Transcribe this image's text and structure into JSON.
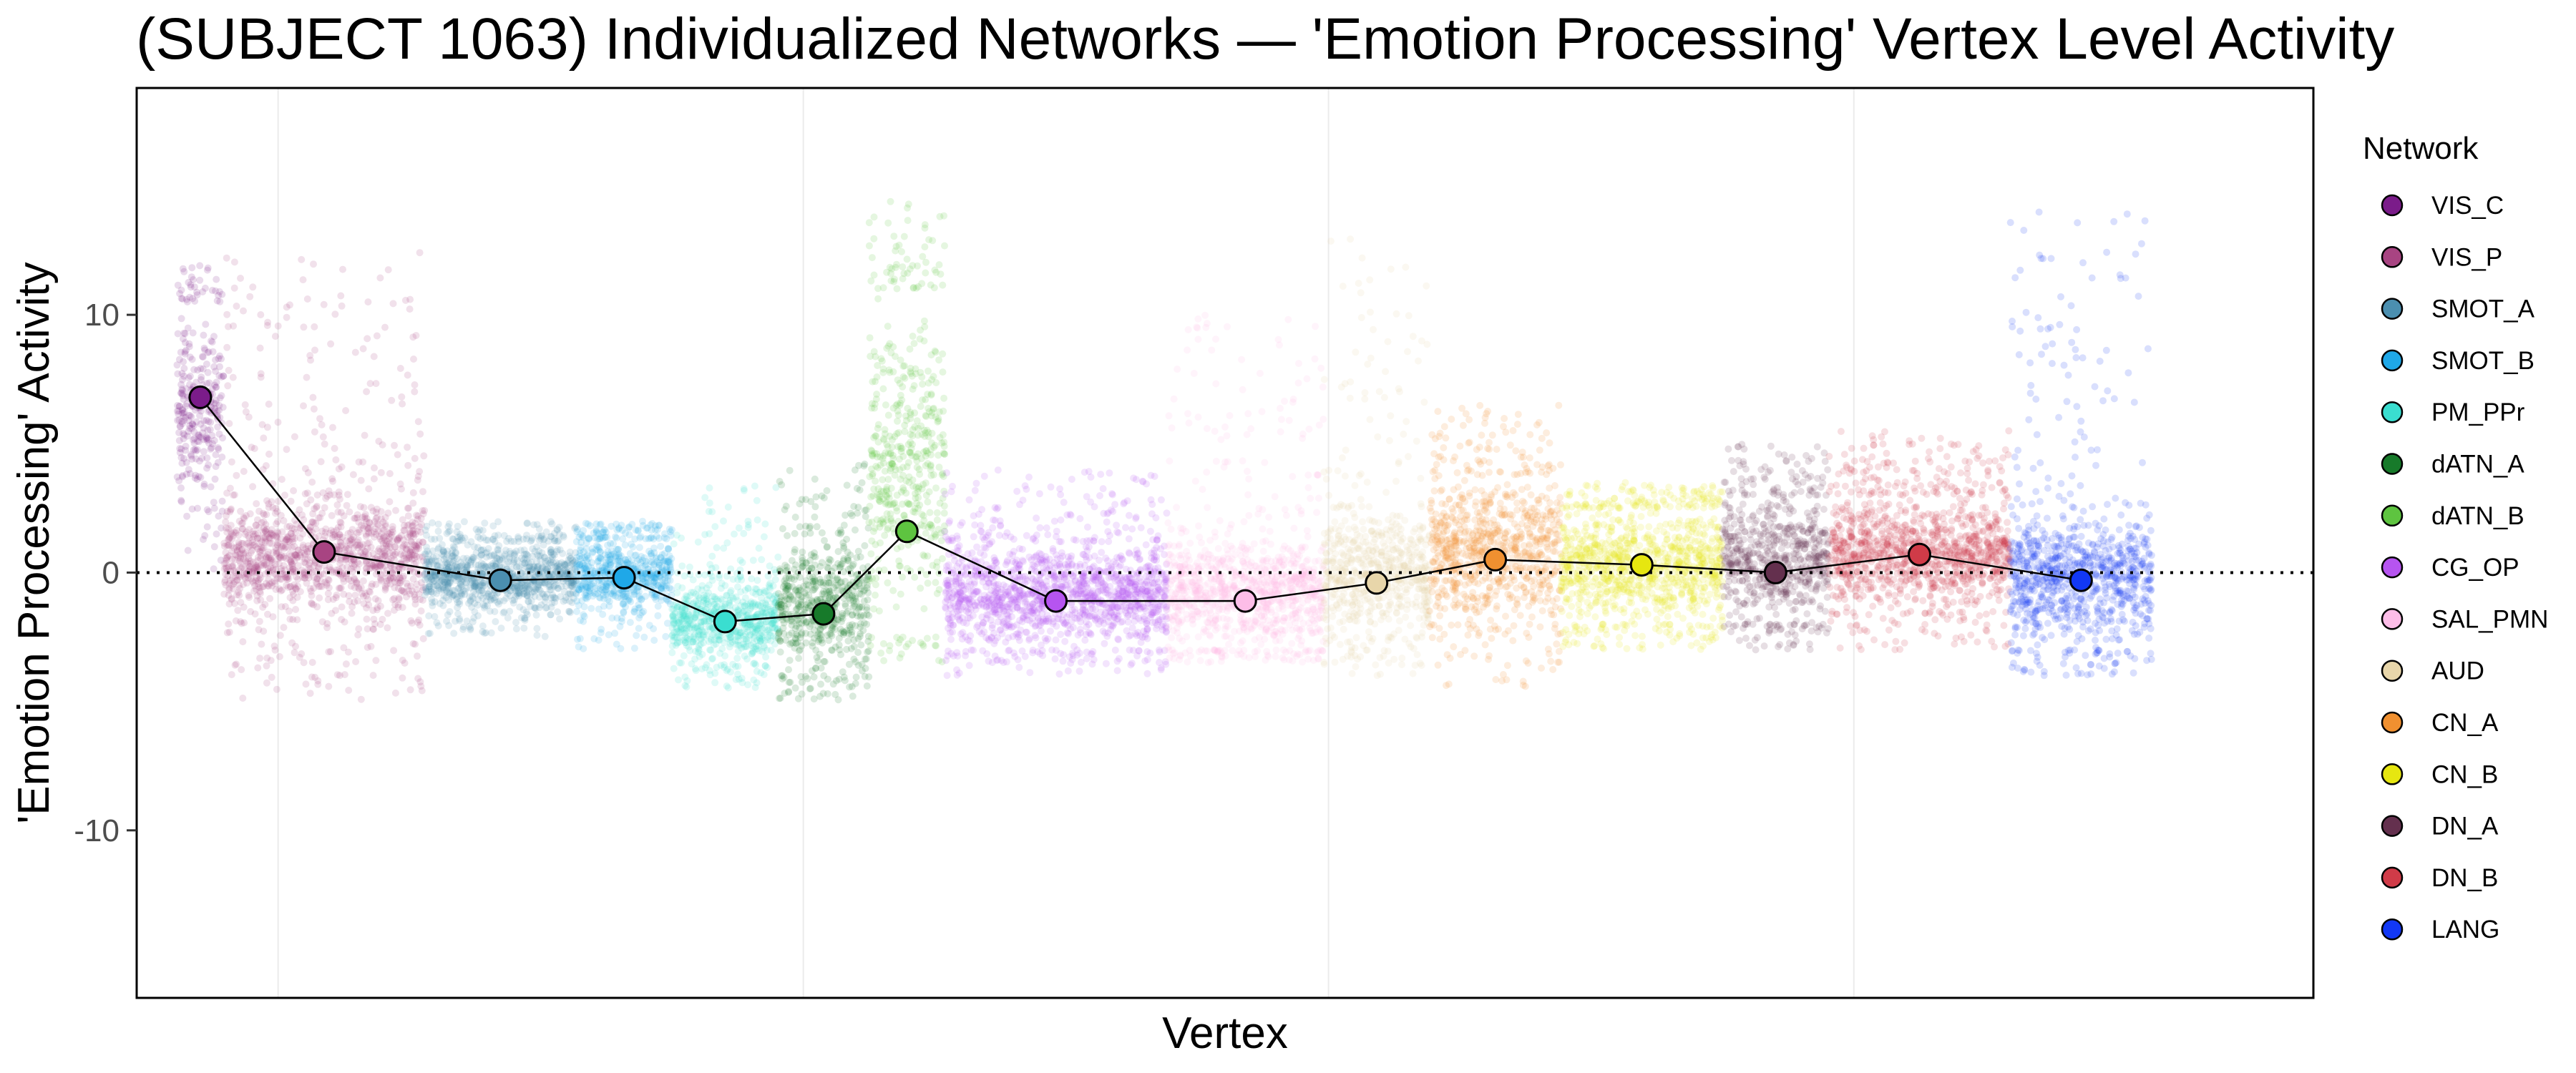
{
  "chart_data": {
    "type": "scatter",
    "title": "(SUBJECT 1063) Individualized Networks — 'Emotion Processing' Vertex Level Activity",
    "xlabel": "Vertex",
    "ylabel": "'Emotion Processing' Activity",
    "ylim": [
      -16.5,
      18.8
    ],
    "yticks": [
      -10,
      0,
      10
    ],
    "xlim": [
      -8000,
      423000
    ],
    "xgrid": [
      20000,
      124000,
      228000,
      332000
    ],
    "reference_line": {
      "y": 0,
      "style": "dotted"
    },
    "grid": true,
    "legend": {
      "title": "Network",
      "position": "right"
    },
    "series": [
      {
        "name": "VIS_C",
        "color": "#7B1C8A",
        "x_start": 0,
        "x_end": 9200,
        "mean": 6.8,
        "lo": 2.5,
        "hi": 10.5,
        "cluster_lo": -0.5,
        "cluster_hi": 12.0
      },
      {
        "name": "VIS_P",
        "color": "#A84482",
        "x_start": 9200,
        "x_end": 49000,
        "mean": 0.8,
        "lo": -1.8,
        "hi": 3.0,
        "cluster_lo": -5.0,
        "cluster_hi": 12.5
      },
      {
        "name": "SMOT_A",
        "color": "#4B8FB0",
        "x_start": 49000,
        "x_end": 79000,
        "mean": -0.3,
        "lo": -1.5,
        "hi": 1.2,
        "cluster_lo": -2.5,
        "cluster_hi": 2.0
      },
      {
        "name": "SMOT_B",
        "color": "#1FA8E8",
        "x_start": 79000,
        "x_end": 98000,
        "mean": -0.2,
        "lo": -1.5,
        "hi": 1.3,
        "cluster_lo": -3.0,
        "cluster_hi": 2.0
      },
      {
        "name": "PM_PPr",
        "color": "#3ADED0",
        "x_start": 98000,
        "x_end": 119000,
        "mean": -1.9,
        "lo": -3.5,
        "hi": -0.3,
        "cluster_lo": -4.5,
        "cluster_hi": 3.5
      },
      {
        "name": "dATN_A",
        "color": "#177A2A",
        "x_start": 119000,
        "x_end": 137000,
        "mean": -1.6,
        "lo": -4.0,
        "hi": 1.5,
        "cluster_lo": -5.0,
        "cluster_hi": 4.5
      },
      {
        "name": "dATN_B",
        "color": "#5EC440",
        "x_start": 137000,
        "x_end": 152000,
        "mean": 1.6,
        "lo": -2.5,
        "hi": 11.0,
        "cluster_lo": -3.5,
        "cluster_hi": 14.5
      },
      {
        "name": "CG_OP",
        "color": "#B654F0",
        "x_start": 152000,
        "x_end": 196000,
        "mean": -1.1,
        "lo": -3.0,
        "hi": 1.2,
        "cluster_lo": -4.0,
        "cluster_hi": 4.0
      },
      {
        "name": "SAL_PMN",
        "color": "#FDBDE8",
        "x_start": 196000,
        "x_end": 227000,
        "mean": -1.1,
        "lo": -3.0,
        "hi": 1.5,
        "cluster_lo": -3.5,
        "cluster_hi": 10.0
      },
      {
        "name": "AUD",
        "color": "#E8D6AA",
        "x_start": 227000,
        "x_end": 248000,
        "mean": -0.4,
        "lo": -2.5,
        "hi": 2.5,
        "cluster_lo": -4.0,
        "cluster_hi": 13.0
      },
      {
        "name": "CN_A",
        "color": "#F09030",
        "x_start": 248000,
        "x_end": 274000,
        "mean": 0.5,
        "lo": -2.0,
        "hi": 3.8,
        "cluster_lo": -4.5,
        "cluster_hi": 6.5
      },
      {
        "name": "CN_B",
        "color": "#E6E610",
        "x_start": 274000,
        "x_end": 306000,
        "mean": 0.3,
        "lo": -2.0,
        "hi": 2.5,
        "cluster_lo": -3.0,
        "cluster_hi": 3.5
      },
      {
        "name": "DN_A",
        "color": "#64304E",
        "x_start": 306000,
        "x_end": 327000,
        "mean": 0.0,
        "lo": -2.0,
        "hi": 3.0,
        "cluster_lo": -3.0,
        "cluster_hi": 5.0
      },
      {
        "name": "DN_B",
        "color": "#D03B48",
        "x_start": 327000,
        "x_end": 363000,
        "mean": 0.7,
        "lo": -1.5,
        "hi": 3.0,
        "cluster_lo": -3.0,
        "cluster_hi": 5.5
      },
      {
        "name": "LANG",
        "color": "#1238F5",
        "x_start": 363000,
        "x_end": 391000,
        "mean": -0.3,
        "lo": -3.0,
        "hi": 2.5,
        "cluster_lo": -4.0,
        "cluster_hi": 14.0
      }
    ]
  }
}
